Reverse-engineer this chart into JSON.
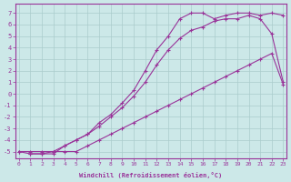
{
  "xlabel": "Windchill (Refroidissement éolien,°C)",
  "background_color": "#cce8e8",
  "grid_color": "#aacccc",
  "line_color": "#993399",
  "xlim": [
    -0.3,
    23.3
  ],
  "ylim": [
    -5.6,
    7.8
  ],
  "xticks": [
    0,
    1,
    2,
    3,
    4,
    5,
    6,
    7,
    8,
    9,
    10,
    11,
    12,
    13,
    14,
    15,
    16,
    17,
    18,
    19,
    20,
    21,
    22,
    23
  ],
  "yticks": [
    -5,
    -4,
    -3,
    -2,
    -1,
    0,
    1,
    2,
    3,
    4,
    5,
    6,
    7
  ],
  "line1_x": [
    0,
    1,
    2,
    3,
    4,
    5,
    6,
    7,
    8,
    9,
    10,
    11,
    12,
    13,
    14,
    15,
    16,
    17,
    18,
    19,
    20,
    21,
    22,
    23
  ],
  "line1_y": [
    -5.0,
    -5.0,
    -5.0,
    -5.0,
    -5.0,
    -5.0,
    -4.5,
    -4.0,
    -3.5,
    -3.0,
    -2.5,
    -2.0,
    -1.5,
    -1.0,
    -0.5,
    0.0,
    0.5,
    1.0,
    1.5,
    2.0,
    2.5,
    3.0,
    3.5,
    0.8
  ],
  "line2_x": [
    0,
    1,
    2,
    3,
    4,
    5,
    6,
    7,
    8,
    9,
    10,
    11,
    12,
    13,
    14,
    15,
    16,
    17,
    18,
    19,
    20,
    21,
    22,
    23
  ],
  "line2_y": [
    -5.0,
    -5.2,
    -5.2,
    -5.0,
    -4.5,
    -4.0,
    -3.5,
    -2.8,
    -2.0,
    -1.2,
    -0.2,
    1.0,
    2.5,
    3.8,
    4.8,
    5.5,
    5.8,
    6.3,
    6.5,
    6.5,
    6.8,
    6.5,
    5.2,
    1.0
  ],
  "line3_x": [
    1,
    2,
    3,
    4,
    5,
    6,
    7,
    8,
    9,
    10,
    11,
    12,
    13,
    14,
    15,
    16,
    17,
    18,
    19,
    20,
    21,
    22,
    23
  ],
  "line3_y": [
    -5.2,
    -5.2,
    -5.2,
    -4.5,
    -4.0,
    -3.5,
    -2.5,
    -1.8,
    -0.8,
    0.3,
    2.0,
    3.8,
    5.0,
    6.5,
    7.0,
    7.0,
    6.5,
    6.8,
    7.0,
    7.0,
    6.8,
    7.0,
    6.8
  ]
}
